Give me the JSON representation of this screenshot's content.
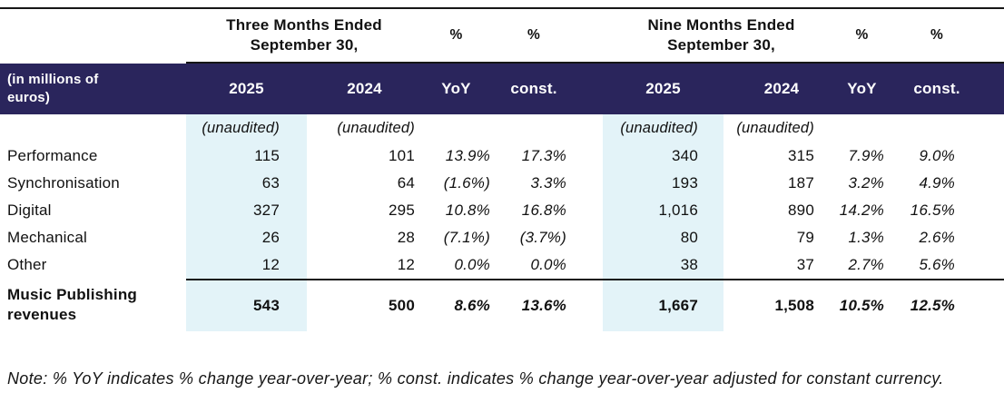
{
  "table": {
    "row_label_header": "(in millions of euros)",
    "groups": [
      {
        "period": "Three Months Ended\nSeptember 30,"
      },
      {
        "period": "Nine Months Ended\nSeptember 30,"
      }
    ],
    "pct_header": "%",
    "col_headers": {
      "y2025": "2025",
      "y2024": "2024",
      "yoy": "YoY",
      "const": "const."
    },
    "unaudited": "(unaudited)",
    "rows": [
      {
        "label": "Performance",
        "m3_2025": "115",
        "m3_2024": "101",
        "m3_yoy": "13.9%",
        "m3_const": "17.3%",
        "m9_2025": "340",
        "m9_2024": "315",
        "m9_yoy": "7.9%",
        "m9_const": "9.0%"
      },
      {
        "label": "Synchronisation",
        "m3_2025": "63",
        "m3_2024": "64",
        "m3_yoy": "(1.6%)",
        "m3_const": "3.3%",
        "m9_2025": "193",
        "m9_2024": "187",
        "m9_yoy": "3.2%",
        "m9_const": "4.9%"
      },
      {
        "label": "Digital",
        "m3_2025": "327",
        "m3_2024": "295",
        "m3_yoy": "10.8%",
        "m3_const": "16.8%",
        "m9_2025": "1,016",
        "m9_2024": "890",
        "m9_yoy": "14.2%",
        "m9_const": "16.5%"
      },
      {
        "label": "Mechanical",
        "m3_2025": "26",
        "m3_2024": "28",
        "m3_yoy": "(7.1%)",
        "m3_const": "(3.7%)",
        "m9_2025": "80",
        "m9_2024": "79",
        "m9_yoy": "1.3%",
        "m9_const": "2.6%"
      },
      {
        "label": "Other",
        "m3_2025": "12",
        "m3_2024": "12",
        "m3_yoy": "0.0%",
        "m3_const": "0.0%",
        "m9_2025": "38",
        "m9_2024": "37",
        "m9_yoy": "2.7%",
        "m9_const": "5.6%"
      }
    ],
    "total_row": {
      "label": "Music Publishing revenues",
      "m3_2025": "543",
      "m3_2024": "500",
      "m3_yoy": "8.6%",
      "m3_const": "13.6%",
      "m9_2025": "1,667",
      "m9_2024": "1,508",
      "m9_yoy": "10.5%",
      "m9_const": "12.5%"
    }
  },
  "note": "Note: % YoY indicates % change year-over-year; % const. indicates % change year-over-year adjusted for constant currency.",
  "colors": {
    "band": "#2a255c",
    "highlight": "#e3f3f8"
  }
}
